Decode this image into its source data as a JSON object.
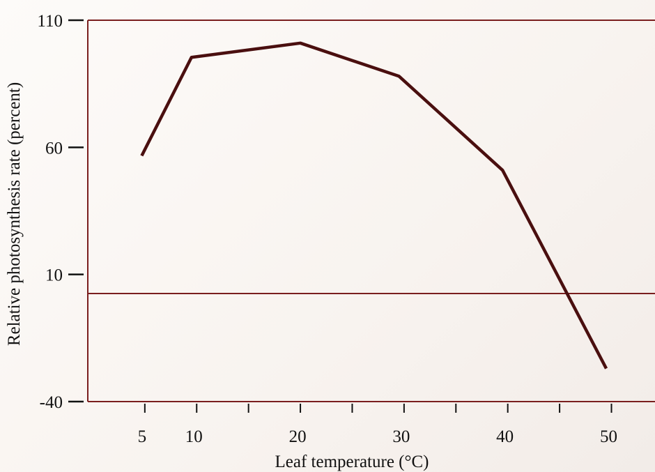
{
  "chart_data": {
    "type": "line",
    "x_label": "Leaf temperature (°C)",
    "y_label": "Relative photosynthesis rate (percent)",
    "x": [
      4.7,
      9.5,
      20,
      29.5,
      39.5,
      49.5
    ],
    "values": [
      56.7,
      95.4,
      101,
      88,
      51,
      -27
    ],
    "color": "#4a0f0f",
    "xlim": [
      -0.5,
      54.2
    ],
    "xticks": [
      5,
      10,
      20,
      30,
      40,
      50
    ],
    "minor_xticks": [
      15,
      25,
      35,
      45
    ],
    "ylim": [
      -40,
      110
    ],
    "yticks": [
      110,
      60,
      10,
      -40
    ],
    "reference_line": 2.5,
    "frame_color": "#7a1e1e"
  }
}
